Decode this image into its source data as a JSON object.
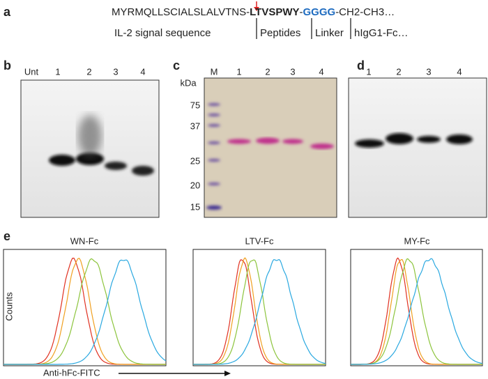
{
  "panel_a": {
    "label": "a",
    "sequence": [
      "MYRMQLLSCIALSLALVTNS-",
      "LTVSPWY",
      "-",
      "GGGG",
      "-CH2-CH3…"
    ],
    "regions": [
      "IL-2 signal sequence",
      "Peptides",
      "Linker",
      "hIgG1-Fc…"
    ]
  },
  "panel_b": {
    "label": "b",
    "lanes": [
      "Unt",
      "1",
      "2",
      "3",
      "4"
    ]
  },
  "panel_c": {
    "label": "c",
    "unit": "kDa",
    "lanes": [
      "M",
      "1",
      "2",
      "3",
      "4"
    ],
    "markers": [
      "75",
      "37",
      "25",
      "20",
      "15"
    ]
  },
  "panel_d": {
    "label": "d",
    "lanes": [
      "1",
      "2",
      "3",
      "4"
    ]
  },
  "panel_e": {
    "label": "e",
    "titles": [
      "WN-Fc",
      "LTV-Fc",
      "MY-Fc"
    ],
    "y_label": "Counts",
    "x_label": "Anti-hFc-FITC"
  }
}
